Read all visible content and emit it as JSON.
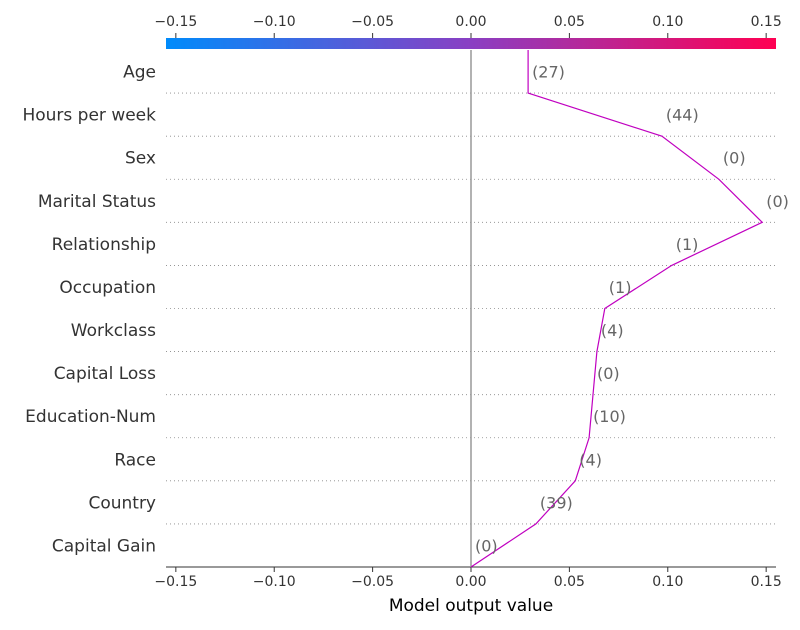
{
  "chart_data": {
    "type": "line",
    "title": "",
    "xlabel": "Model output value",
    "ylabel": "",
    "xlim": [
      -0.155,
      0.155
    ],
    "ticks": [
      -0.15,
      -0.1,
      -0.05,
      0.0,
      0.05,
      0.1,
      0.15
    ],
    "tick_labels": [
      "−0.15",
      "−0.10",
      "−0.05",
      "0.00",
      "0.05",
      "0.10",
      "0.15"
    ],
    "base_value": 0.0,
    "colorbar": {
      "from": "#008bfb",
      "mid": "#8a3fc3",
      "to": "#ff0052"
    },
    "line_color": "#c000c0",
    "features": [
      "Age",
      "Hours per week",
      "Sex",
      "Marital Status",
      "Relationship",
      "Occupation",
      "Workclass",
      "Capital Loss",
      "Education-Num",
      "Race",
      "Country",
      "Capital Gain"
    ],
    "feature_values": [
      "(27)",
      "(44)",
      "(0)",
      "(0)",
      "(1)",
      "(1)",
      "(4)",
      "(0)",
      "(10)",
      "(4)",
      "(39)",
      "(0)"
    ],
    "path_x": [
      0.029,
      0.097,
      0.126,
      0.148,
      0.102,
      0.068,
      0.064,
      0.062,
      0.06,
      0.053,
      0.033,
      0.0
    ],
    "grid": "dotted horizontal"
  }
}
